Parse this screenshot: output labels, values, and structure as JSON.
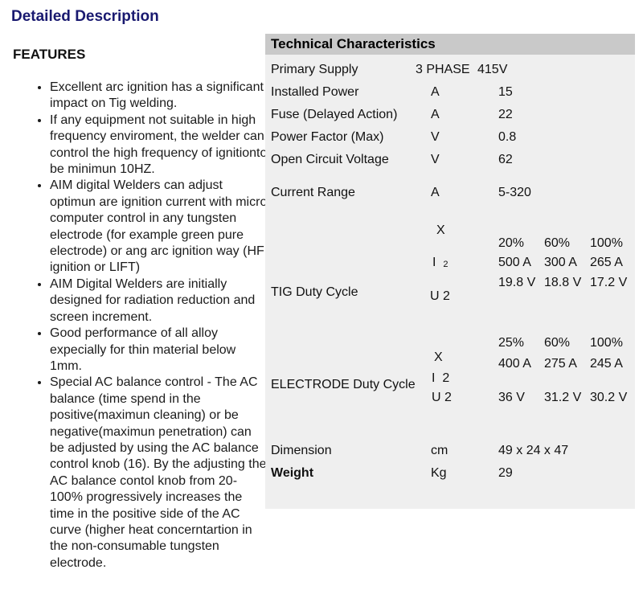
{
  "page": {
    "title": "Detailed Description"
  },
  "features": {
    "heading": "FEATURES",
    "items": [
      "Excellent arc ignition has a significant impact on Tig welding.",
      "If any equipment not suitable in high frequency enviroment, the welder can control the high frequency of ignitionto be minimun 10HZ.",
      "AIM digital Welders can adjust optimun are ignition current with micro computer control in any tungsten electrode (for example green pure electrode) or ang arc ignition way (HF ignition or LIFT)",
      "AIM Digital Welders are initially designed for radiation reduction and screen increment.",
      "Good performance of all alloy expecially for thin material below 1mm.",
      "Special AC balance control - The AC balance (time spend in the positive(maximun cleaning) or be negative(maximun penetration) can be adjusted by using the AC balance control knob (16). By the adjusting the AC balance contol knob from 20-100% progressively increases the time in the positive side of the AC curve (higher heat concerntartion in the non-consumable tungsten electrode."
    ]
  },
  "table": {
    "title": "Technical Characteristics",
    "rows": [
      {
        "label": "Primary Supply",
        "unit": "3 PHASE",
        "value": "415V"
      },
      {
        "label": "Installed Power",
        "unit": "A",
        "value": "15"
      },
      {
        "label": "Fuse (Delayed Action)",
        "unit": "A",
        "value": "22"
      },
      {
        "label": "Power Factor (Max)",
        "unit": "V",
        "value": "0.8"
      },
      {
        "label": "Open Circuit Voltage",
        "unit": "V",
        "value": "62"
      },
      {
        "label": "Current Range",
        "unit": "A",
        "value": "5-320"
      }
    ],
    "tig": {
      "label": "TIG Duty Cycle",
      "sym_x": "X",
      "sym_i": "I",
      "sym_i_sub": "2",
      "sym_u": "U 2",
      "percent": [
        "20%",
        "60%",
        "100%"
      ],
      "current": [
        "500 A",
        "300 A",
        "265 A"
      ],
      "voltage": [
        "19.8 V",
        "18.8 V",
        "17.2 V"
      ]
    },
    "electrode": {
      "label": "ELECTRODE Duty Cycle",
      "sym_x": "X",
      "sym_i": "I  2",
      "sym_u": "U 2",
      "percent": [
        "25%",
        "60%",
        "100%"
      ],
      "current": [
        "400 A",
        "275 A",
        "245 A"
      ],
      "voltage": [
        "36 V",
        "31.2 V",
        "30.2 V"
      ]
    },
    "dimension": {
      "label": "Dimension",
      "unit": "cm",
      "value": "49 x 24 x 47"
    },
    "weight": {
      "label": "Weight",
      "unit": "Kg",
      "value": "29"
    }
  },
  "colors": {
    "title_navy": "#191970",
    "table_header_bg": "#c9c9c9",
    "table_body_bg": "#efefef"
  }
}
